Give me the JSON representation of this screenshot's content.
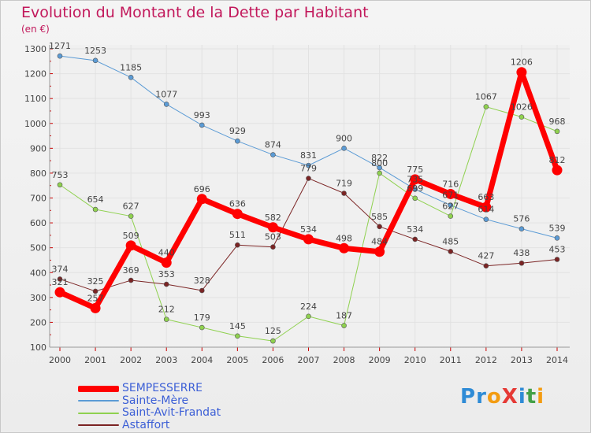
{
  "title": "Evolution du Montant de la Dette par Habitant",
  "unit_label": "(en €)",
  "logo": {
    "text": "ProXiti",
    "letters": [
      {
        "ch": "P",
        "color": "#2e8bd6"
      },
      {
        "ch": "r",
        "color": "#2e8bd6"
      },
      {
        "ch": "o",
        "color": "#f39c12"
      },
      {
        "ch": "X",
        "color": "#e53935"
      },
      {
        "ch": "i",
        "color": "#2e8bd6"
      },
      {
        "ch": "t",
        "color": "#43a047"
      },
      {
        "ch": "i",
        "color": "#f39c12"
      }
    ]
  },
  "chart_data": {
    "type": "line",
    "title": "Evolution du Montant de la Dette par Habitant",
    "ylabel": "(en €)",
    "xlabel": "",
    "categories": [
      "2000",
      "2001",
      "2002",
      "2003",
      "2004",
      "2005",
      "2006",
      "2007",
      "2008",
      "2009",
      "2010",
      "2011",
      "2012",
      "2013",
      "2014"
    ],
    "ylim": [
      100,
      1300
    ],
    "yticks": [
      100,
      200,
      300,
      400,
      500,
      600,
      700,
      800,
      900,
      1000,
      1100,
      1200,
      1300
    ],
    "grid": true,
    "legend_position": "bottom-left",
    "series": [
      {
        "name": "SEMPESSERRE",
        "color": "#ff0000",
        "width": 7,
        "values": [
          321,
          257,
          509,
          440,
          696,
          636,
          582,
          534,
          498,
          484,
          775,
          716,
          663,
          1206,
          812
        ],
        "labels": [
          "321",
          "257",
          "509",
          "440",
          "696",
          "636",
          "582",
          "534",
          "498",
          "484",
          "775",
          "716",
          "663",
          "1206",
          "812"
        ]
      },
      {
        "name": "Sainte-Mère",
        "color": "#5b9bd5",
        "width": 1,
        "values": [
          1271,
          1253,
          1185,
          1077,
          993,
          929,
          874,
          831,
          900,
          822,
          735,
          671,
          614,
          576,
          539
        ],
        "labels": [
          "1271",
          "1253",
          "1185",
          "1077",
          "993",
          "929",
          "874",
          "831",
          "900",
          "822",
          "735",
          "671",
          "614",
          "576",
          "539"
        ]
      },
      {
        "name": "Saint-Avit-Frandat",
        "color": "#8fd14f",
        "width": 1,
        "values": [
          753,
          654,
          627,
          212,
          179,
          145,
          125,
          224,
          187,
          800,
          699,
          627,
          1067,
          1026,
          968
        ],
        "labels": [
          "753",
          "654",
          "627",
          "212",
          "179",
          "145",
          "125",
          "224",
          "187",
          "800",
          "699",
          "627",
          "1067",
          "1026",
          "968"
        ]
      },
      {
        "name": "Astaffort",
        "color": "#7b2424",
        "width": 1,
        "values": [
          374,
          325,
          369,
          353,
          328,
          511,
          503,
          779,
          719,
          585,
          534,
          485,
          427,
          438,
          453
        ],
        "labels": [
          "374",
          "325",
          "369",
          "353",
          "328",
          "511",
          "503",
          "779",
          "719",
          "585",
          "534",
          "485",
          "427",
          "438",
          "453"
        ]
      }
    ]
  }
}
